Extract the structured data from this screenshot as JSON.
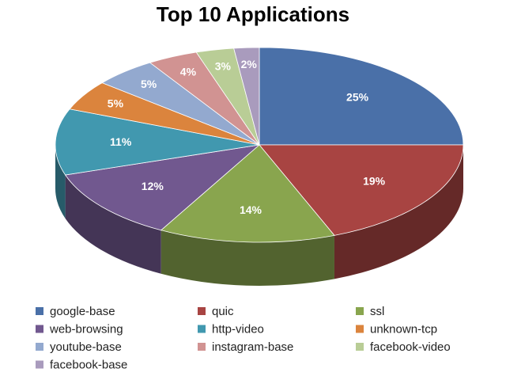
{
  "chart_data": {
    "type": "pie3d",
    "title": "Top 10 Applications",
    "categories": [
      "google-base",
      "quic",
      "ssl",
      "web-browsing",
      "http-video",
      "unknown-tcp",
      "youtube-base",
      "instagram-base",
      "facebook-video",
      "facebook-base"
    ],
    "values": [
      25,
      19,
      14,
      12,
      11,
      5,
      5,
      4,
      3,
      2
    ],
    "value_labels": [
      "25%",
      "19%",
      "14%",
      "12%",
      "11%",
      "5%",
      "5%",
      "4%",
      "3%",
      "2%"
    ],
    "colors": [
      "#4a70a8",
      "#a84442",
      "#89a54e",
      "#71588f",
      "#4198af",
      "#db843d",
      "#93a9cf",
      "#d19392",
      "#b9cd96",
      "#a99bbd"
    ],
    "legend": "bottom"
  }
}
